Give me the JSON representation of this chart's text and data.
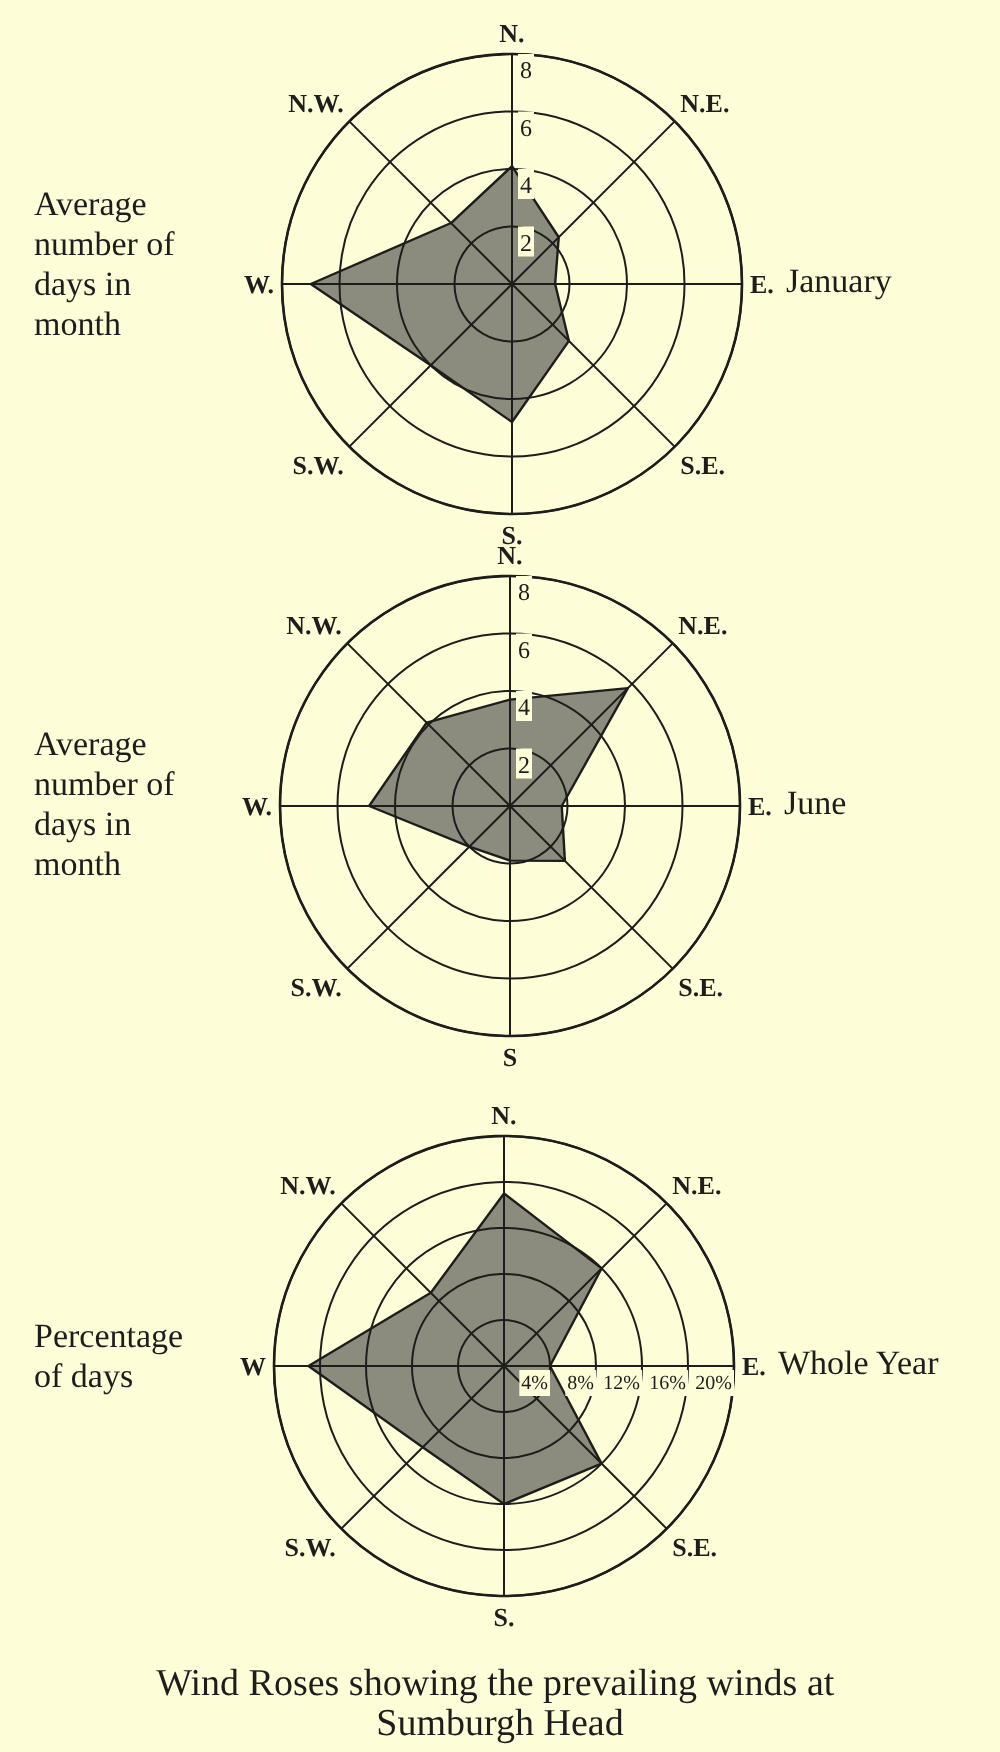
{
  "chart_data": [
    {
      "type": "radar",
      "title": "January",
      "ylabel": "Average number of days in month",
      "categories": [
        "N.",
        "N.E.",
        "E.",
        "S.E.",
        "S.",
        "S.W.",
        "W.",
        "N.W."
      ],
      "values": [
        4.1,
        2.3,
        1.5,
        2.8,
        4.8,
        4.0,
        7.0,
        3.0
      ],
      "color": "#8c8c7e",
      "ylim": [
        0,
        8
      ],
      "yticks": [
        2,
        4,
        6,
        8
      ],
      "grid": true
    },
    {
      "type": "radar",
      "title": "June",
      "ylabel": "Average number of days in month",
      "categories": [
        "N.",
        "N.E.",
        "E.",
        "S.E.",
        "S",
        "S.W.",
        "W.",
        "N.W."
      ],
      "values": [
        3.7,
        5.8,
        1.8,
        2.7,
        1.9,
        2.0,
        4.9,
        4.1
      ],
      "color": "#8c8c7e",
      "ylim": [
        0,
        8
      ],
      "yticks": [
        2,
        4,
        6,
        8
      ],
      "grid": true
    },
    {
      "type": "radar",
      "title": "Whole Year",
      "ylabel": "Percentage of days",
      "categories": [
        "N.",
        "N.E.",
        "E.",
        "S.E.",
        "S.",
        "S.W.",
        "W",
        "N.W."
      ],
      "values": [
        15,
        12,
        4,
        12,
        12,
        10,
        17,
        9
      ],
      "color": "#8c8c7e",
      "ylim": [
        0,
        20
      ],
      "yticks": [
        {
          "value": 4,
          "label": "4%"
        },
        {
          "value": 8,
          "label": "8%"
        },
        {
          "value": 12,
          "label": "12%"
        },
        {
          "value": 16,
          "label": "16%"
        },
        {
          "value": 20,
          "label": "20%"
        }
      ],
      "grid": true,
      "annotations": [
        "Wind Roses showing the prevailing winds at Sumburgh Head"
      ]
    }
  ]
}
